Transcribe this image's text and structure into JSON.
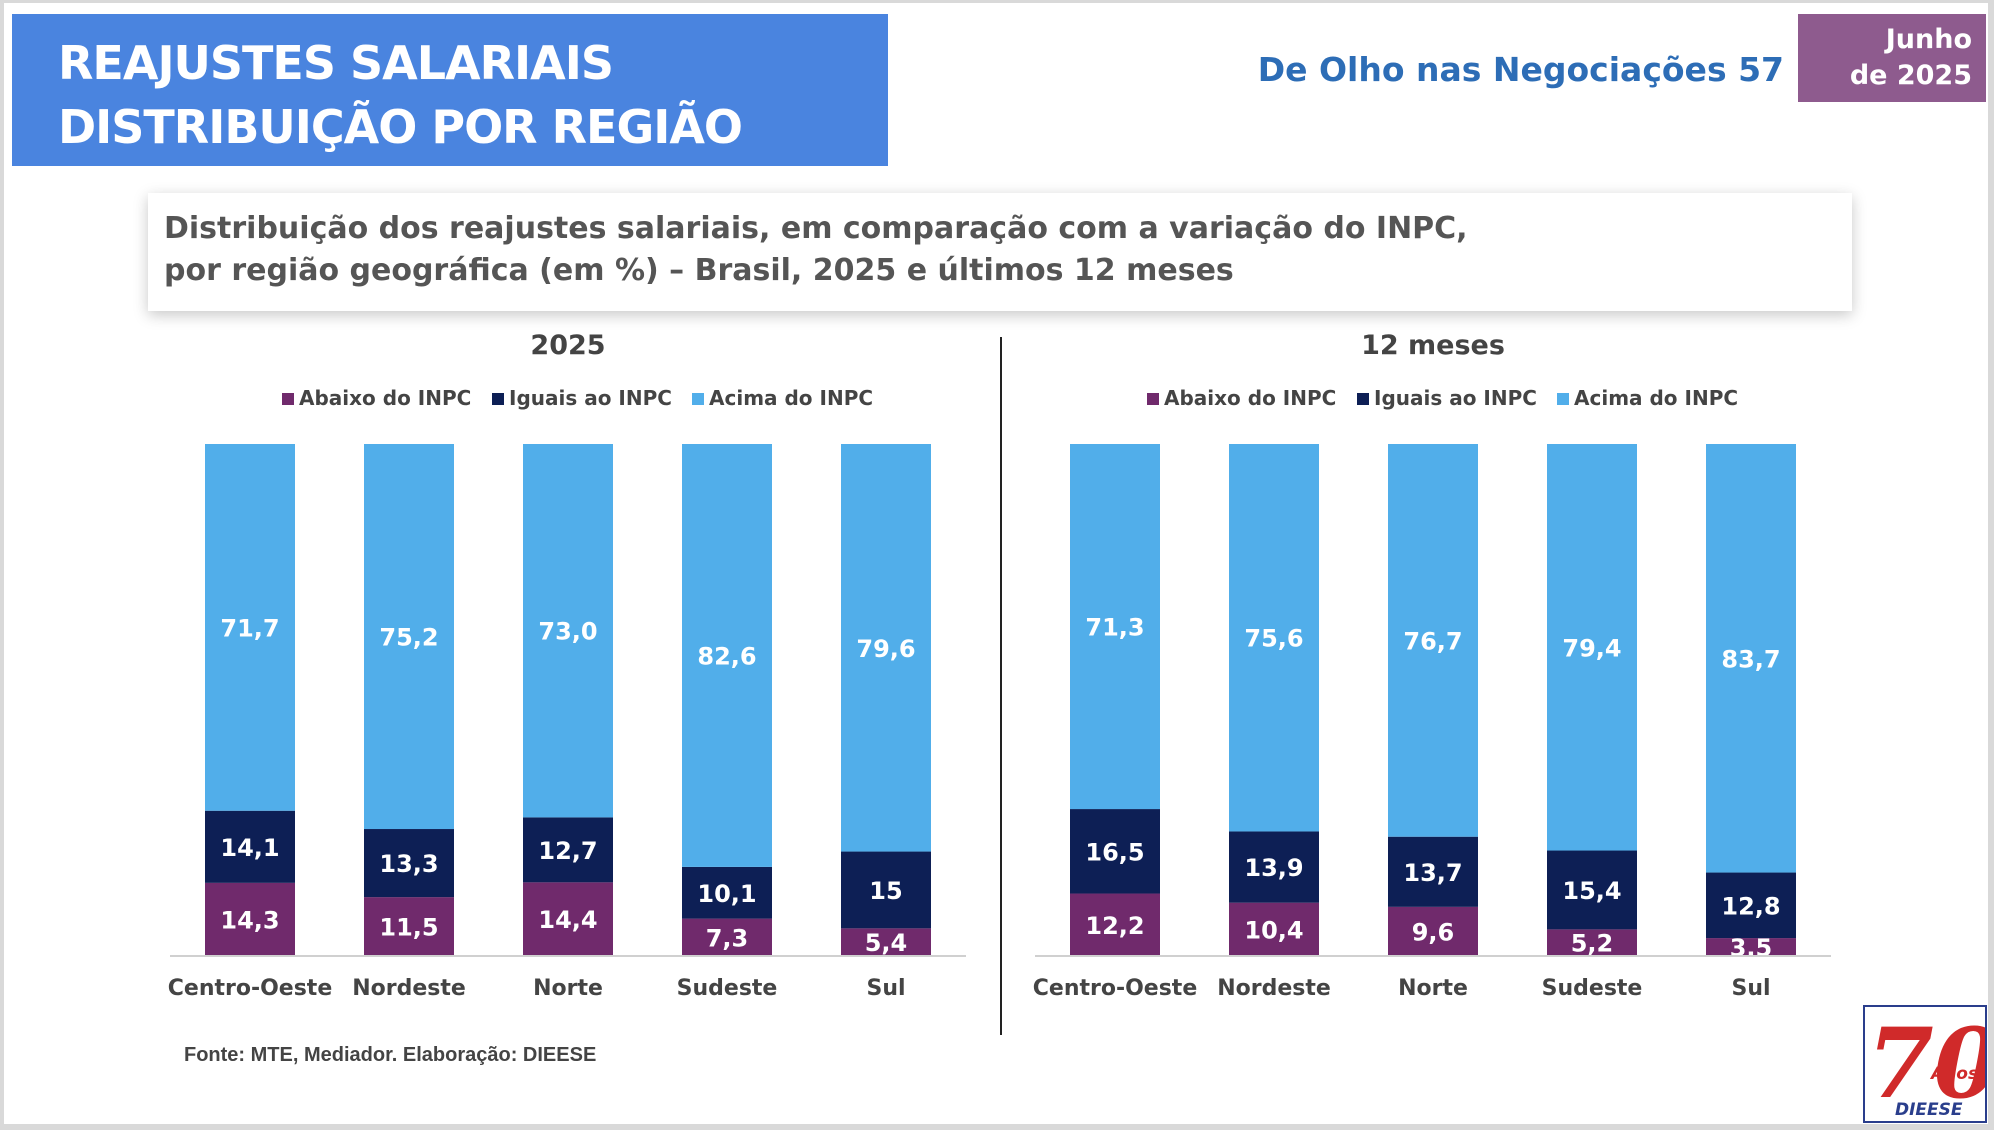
{
  "header": {
    "title_line1": "REAJUSTES SALARIAIS",
    "title_line2": "DISTRIBUIÇÃO POR REGIÃO",
    "publication": "De Olho nas Negociações 57",
    "date_line1": "Junho",
    "date_line2": "de 2025"
  },
  "subtitle": {
    "line1": "Distribuição dos reajustes salariais, em comparação com a variação do INPC,",
    "line2": "por região geográfica (em %) – Brasil, 2025 e últimos 12 meses"
  },
  "source": "Fonte: MTE, Mediador. Elaboração: DIEESE",
  "logo": {
    "number": "70",
    "sub": "Anos",
    "brand": "DIEESE"
  },
  "colors": {
    "abaixo": "#702a6c",
    "iguais": "#0d1f55",
    "acima": "#51aeea",
    "title_bg": "#4a84df",
    "date_bg": "#8e5b8e",
    "publication": "#2d6db6"
  },
  "chart_data": [
    {
      "type": "bar",
      "stacked": true,
      "title": "2025",
      "categories": [
        "Centro-Oeste",
        "Nordeste",
        "Norte",
        "Sudeste",
        "Sul"
      ],
      "series": [
        {
          "name": "Abaixo do INPC",
          "values": [
            14.3,
            11.5,
            14.4,
            7.3,
            5.4
          ],
          "labels": [
            "14,3",
            "11,5",
            "14,4",
            "7,3",
            "5,4"
          ]
        },
        {
          "name": "Iguais ao INPC",
          "values": [
            14.1,
            13.3,
            12.7,
            10.1,
            15
          ],
          "labels": [
            "14,1",
            "13,3",
            "12,7",
            "10,1",
            "15"
          ]
        },
        {
          "name": "Acima do INPC",
          "values": [
            71.7,
            75.2,
            73.0,
            82.6,
            79.6
          ],
          "labels": [
            "71,7",
            "75,2",
            "73,0",
            "82,6",
            "79,6"
          ]
        }
      ],
      "ylim": [
        0,
        100
      ],
      "legend": "top",
      "grid": false
    },
    {
      "type": "bar",
      "stacked": true,
      "title": "12 meses",
      "categories": [
        "Centro-Oeste",
        "Nordeste",
        "Norte",
        "Sudeste",
        "Sul"
      ],
      "series": [
        {
          "name": "Abaixo do INPC",
          "values": [
            12.2,
            10.4,
            9.6,
            5.2,
            3.5
          ],
          "labels": [
            "12,2",
            "10,4",
            "9,6",
            "5,2",
            "3,5"
          ]
        },
        {
          "name": "Iguais ao INPC",
          "values": [
            16.5,
            13.9,
            13.7,
            15.4,
            12.8
          ],
          "labels": [
            "16,5",
            "13,9",
            "13,7",
            "15,4",
            "12,8"
          ]
        },
        {
          "name": "Acima do INPC",
          "values": [
            71.3,
            75.6,
            76.7,
            79.4,
            83.7
          ],
          "labels": [
            "71,3",
            "75,6",
            "76,7",
            "79,4",
            "83,7"
          ]
        }
      ],
      "ylim": [
        0,
        100
      ],
      "legend": "top",
      "grid": false
    }
  ]
}
